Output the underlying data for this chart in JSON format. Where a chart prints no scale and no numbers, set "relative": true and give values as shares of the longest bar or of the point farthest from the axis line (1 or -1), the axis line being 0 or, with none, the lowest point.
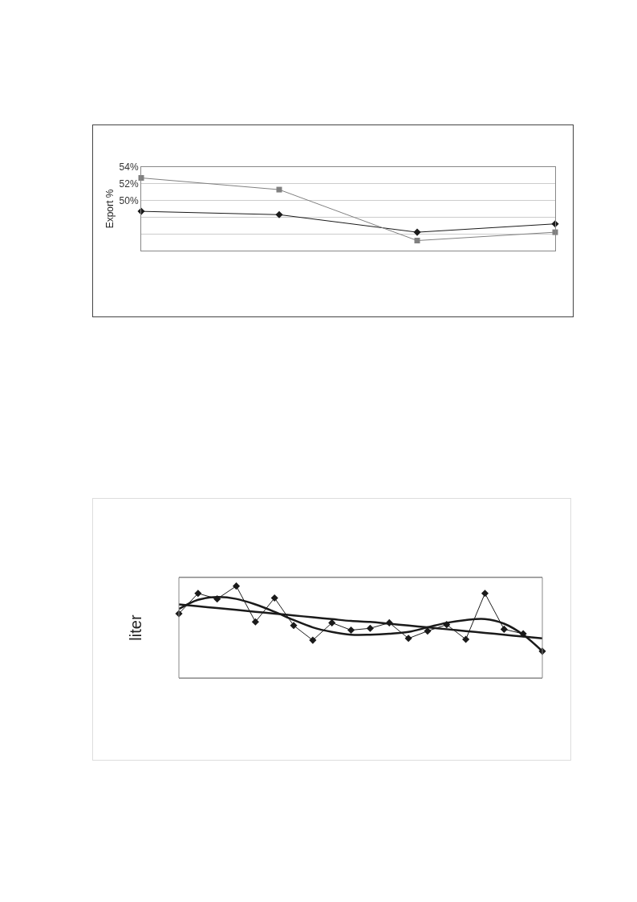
{
  "chart_data": [
    {
      "type": "line",
      "ylabel": "Export %",
      "categories": [
        null,
        null,
        null,
        null
      ],
      "series": [
        {
          "color": "#1a1a1a",
          "marker": "diamond",
          "values": [
            48.7,
            48.3,
            46.2,
            47.2
          ]
        },
        {
          "color": "#808080",
          "marker": "square",
          "values": [
            52.7,
            51.3,
            45.2,
            46.2
          ]
        }
      ],
      "ylim": [
        44,
        54
      ],
      "yticks": [
        {
          "value": 44,
          "label": null
        },
        {
          "value": 46,
          "label": null
        },
        {
          "value": 48,
          "label": null
        },
        {
          "value": 50,
          "label": "50%"
        },
        {
          "value": 52,
          "label": "52%"
        },
        {
          "value": 54,
          "label": "54%"
        }
      ],
      "grid": "y",
      "tick_labels": "y"
    },
    {
      "type": "line",
      "ylabel": "liter",
      "relative": true,
      "categories": [
        null,
        null,
        null,
        null,
        null,
        null,
        null,
        null,
        null,
        null,
        null,
        null,
        null,
        null,
        null,
        null,
        null,
        null,
        null,
        null
      ],
      "series": [
        {
          "color": "#1a1a1a",
          "marker": "diamond",
          "values": [
            0.7,
            0.92,
            0.86,
            1.0,
            0.61,
            0.87,
            0.57,
            0.41,
            0.6,
            0.52,
            0.54,
            0.6,
            0.43,
            0.51,
            0.58,
            0.42,
            0.92,
            0.53,
            0.48,
            0.29
          ]
        },
        {
          "color": "#1a1a1a",
          "marker": "none",
          "values": [
            0.75,
            0.85,
            0.88,
            0.86,
            0.8,
            0.72,
            0.63,
            0.55,
            0.5,
            0.47,
            0.47,
            0.48,
            0.5,
            0.55,
            0.6,
            0.63,
            0.64,
            0.59,
            0.47,
            0.29
          ]
        },
        {
          "color": "#1a1a1a",
          "marker": "none",
          "values": [
            0.8,
            0.78,
            0.76,
            0.74,
            0.72,
            0.7,
            0.68,
            0.66,
            0.64,
            0.62,
            0.61,
            0.59,
            0.57,
            0.55,
            0.53,
            0.51,
            0.49,
            0.47,
            0.45,
            0.43
          ]
        }
      ],
      "tick_labels": false
    }
  ]
}
